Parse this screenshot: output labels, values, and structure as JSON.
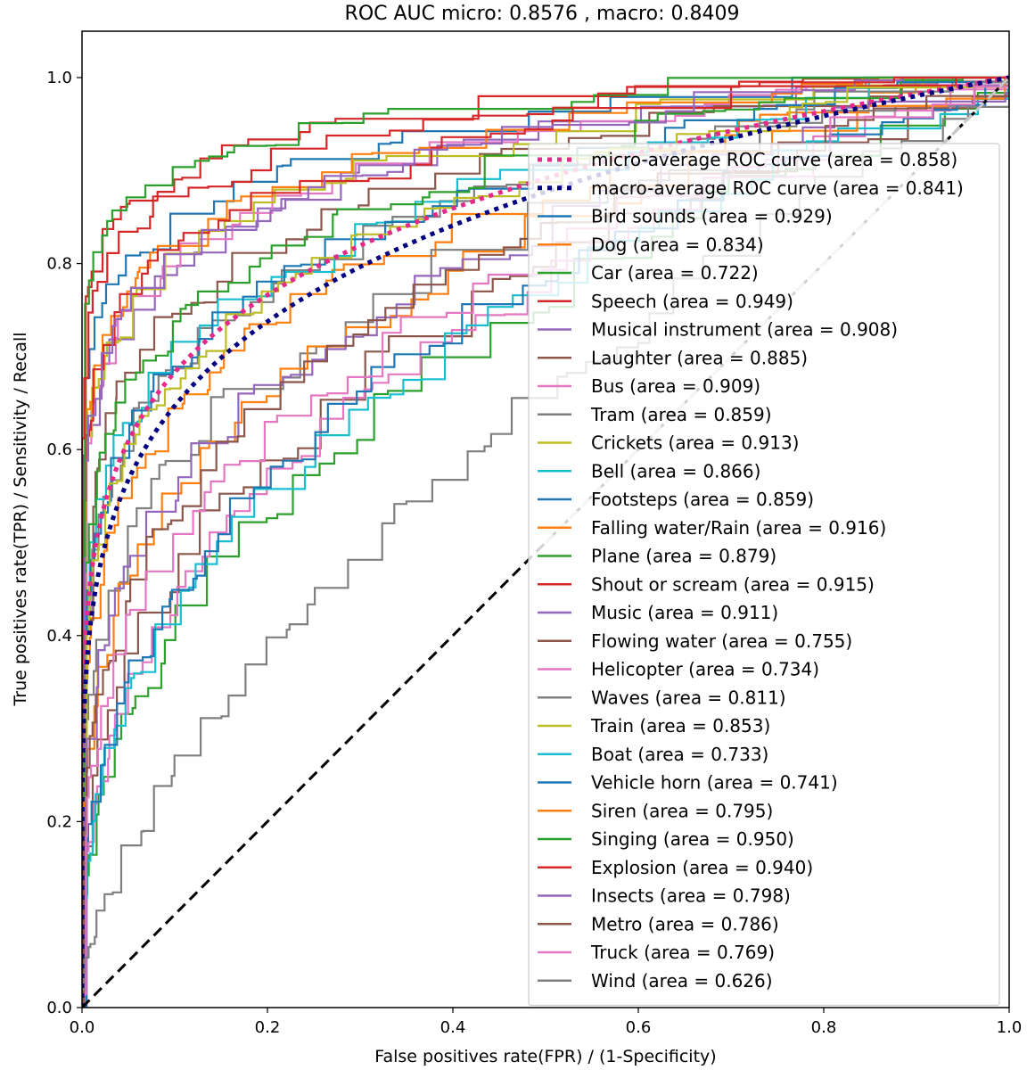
{
  "chart_data": {
    "type": "line",
    "title": "ROC AUC micro: 0.8576 , macro: 0.8409",
    "xlabel": "False positives rate(FPR) / (1-Specificity)",
    "ylabel": "True positives rate(TPR) / Sensitivity / Recall",
    "xlim": [
      0.0,
      1.0
    ],
    "ylim": [
      0.0,
      1.05
    ],
    "xticks": [
      "0.0",
      "0.2",
      "0.4",
      "0.6",
      "0.8",
      "1.0"
    ],
    "yticks": [
      "0.0",
      "0.2",
      "0.4",
      "0.6",
      "0.8",
      "1.0"
    ],
    "grid": false,
    "legend_position": "lower-right",
    "reference_lines": [
      {
        "style": "dashed",
        "color": "#000000",
        "x": [
          0,
          1
        ],
        "y": [
          0,
          1
        ]
      },
      {
        "style": "dashed",
        "color": "#c8c8c8",
        "x": [
          0.5,
          1
        ],
        "y": [
          0.5,
          1
        ]
      }
    ],
    "series": [
      {
        "name": "micro-average ROC curve (area = 0.858)",
        "color": "#e7298a",
        "style": "dotted",
        "auc": 0.858
      },
      {
        "name": "macro-average ROC curve (area = 0.841)",
        "color": "#000080",
        "style": "dotted",
        "auc": 0.841
      },
      {
        "name": "Bird sounds (area = 0.929)",
        "color": "#1f77b4",
        "style": "solid",
        "auc": 0.929
      },
      {
        "name": "Dog (area = 0.834)",
        "color": "#ff7f0e",
        "style": "solid",
        "auc": 0.834
      },
      {
        "name": "Car (area = 0.722)",
        "color": "#2ca02c",
        "style": "solid",
        "auc": 0.722
      },
      {
        "name": "Speech (area = 0.949)",
        "color": "#d62728",
        "style": "solid",
        "auc": 0.949
      },
      {
        "name": "Musical instrument (area = 0.908)",
        "color": "#9467bd",
        "style": "solid",
        "auc": 0.908
      },
      {
        "name": "Laughter (area = 0.885)",
        "color": "#8c564b",
        "style": "solid",
        "auc": 0.885
      },
      {
        "name": "Bus (area = 0.909)",
        "color": "#e377c2",
        "style": "solid",
        "auc": 0.909
      },
      {
        "name": "Tram (area = 0.859)",
        "color": "#7f7f7f",
        "style": "solid",
        "auc": 0.859
      },
      {
        "name": "Crickets (area = 0.913)",
        "color": "#bcbd22",
        "style": "solid",
        "auc": 0.913
      },
      {
        "name": "Bell (area = 0.866)",
        "color": "#17becf",
        "style": "solid",
        "auc": 0.866
      },
      {
        "name": "Footsteps (area = 0.859)",
        "color": "#1f77b4",
        "style": "solid",
        "auc": 0.859
      },
      {
        "name": "Falling water/Rain (area = 0.916)",
        "color": "#ff7f0e",
        "style": "solid",
        "auc": 0.916
      },
      {
        "name": "Plane (area = 0.879)",
        "color": "#2ca02c",
        "style": "solid",
        "auc": 0.879
      },
      {
        "name": "Shout or scream (area = 0.915)",
        "color": "#d62728",
        "style": "solid",
        "auc": 0.915
      },
      {
        "name": "Music (area = 0.911)",
        "color": "#9467bd",
        "style": "solid",
        "auc": 0.911
      },
      {
        "name": "Flowing water (area = 0.755)",
        "color": "#8c564b",
        "style": "solid",
        "auc": 0.755
      },
      {
        "name": "Helicopter (area = 0.734)",
        "color": "#e377c2",
        "style": "solid",
        "auc": 0.734
      },
      {
        "name": "Waves (area = 0.811)",
        "color": "#7f7f7f",
        "style": "solid",
        "auc": 0.811
      },
      {
        "name": "Train (area = 0.853)",
        "color": "#bcbd22",
        "style": "solid",
        "auc": 0.853
      },
      {
        "name": "Boat (area = 0.733)",
        "color": "#17becf",
        "style": "solid",
        "auc": 0.733
      },
      {
        "name": "Vehicle horn (area = 0.741)",
        "color": "#1f77b4",
        "style": "solid",
        "auc": 0.741
      },
      {
        "name": "Siren (area = 0.795)",
        "color": "#ff7f0e",
        "style": "solid",
        "auc": 0.795
      },
      {
        "name": "Singing (area = 0.950)",
        "color": "#2ca02c",
        "style": "solid",
        "auc": 0.95
      },
      {
        "name": "Explosion (area = 0.940)",
        "color": "#d62728",
        "style": "solid",
        "auc": 0.94
      },
      {
        "name": "Insects (area = 0.798)",
        "color": "#9467bd",
        "style": "solid",
        "auc": 0.798
      },
      {
        "name": "Metro (area = 0.786)",
        "color": "#8c564b",
        "style": "solid",
        "auc": 0.786
      },
      {
        "name": "Truck (area = 0.769)",
        "color": "#e377c2",
        "style": "solid",
        "auc": 0.769
      },
      {
        "name": "Wind (area = 0.626)",
        "color": "#7f7f7f",
        "style": "solid",
        "auc": 0.626
      }
    ]
  }
}
